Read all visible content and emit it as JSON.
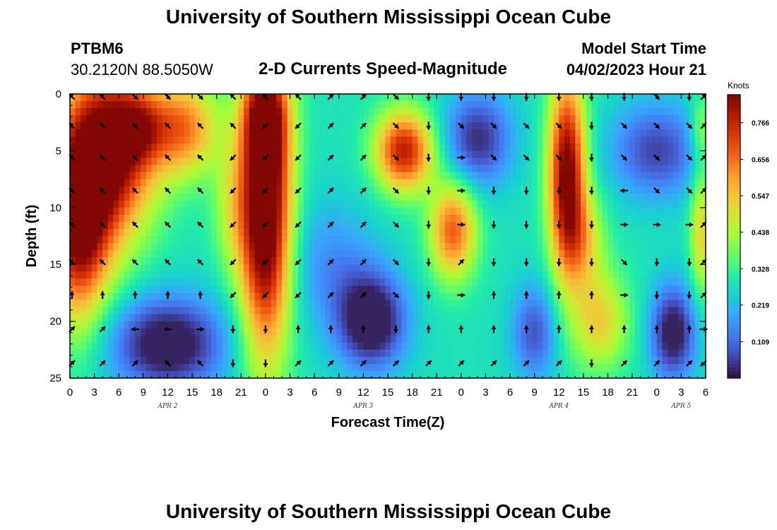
{
  "page": {
    "title": "University of Southern Mississippi Ocean Cube",
    "footer_title": "University of Southern Mississippi Ocean Cube",
    "station": "PTBM6",
    "coordinates": "30.2120N  88.5050W",
    "model_start_label": "Model Start Time",
    "model_start_value": "04/02/2023 Hour 21"
  },
  "chart_data": {
    "type": "heatmap",
    "title": "2-D Currents Speed-Magnitude",
    "xlabel": "Forecast Time(Z)",
    "ylabel": "Depth (ft)",
    "x_ticks": [
      "0",
      "3",
      "6",
      "9",
      "12",
      "15",
      "18",
      "21",
      "0",
      "3",
      "6",
      "9",
      "12",
      "15",
      "18",
      "21",
      "0",
      "3",
      "6",
      "9",
      "12",
      "15",
      "18",
      "21",
      "0",
      "3",
      "6"
    ],
    "x_range_hours": [
      0,
      78
    ],
    "date_labels": [
      {
        "text": "APR 2",
        "hour": 12
      },
      {
        "text": "APR 3",
        "hour": 36
      },
      {
        "text": "APR 4",
        "hour": 60
      },
      {
        "text": "APR 5",
        "hour": 75
      }
    ],
    "y_ticks": [
      "0",
      "5",
      "10",
      "15",
      "20",
      "25"
    ],
    "ylim": [
      0,
      25
    ],
    "y_inverted": true,
    "colorbar": {
      "unit": "Knots",
      "ticks": [
        "0.766",
        "0.656",
        "0.547",
        "0.438",
        "0.328",
        "0.219",
        "0.109"
      ],
      "range": [
        0,
        0.85
      ],
      "colors": [
        "#30123b",
        "#4145ab",
        "#4675ed",
        "#39a2fc",
        "#1bcfd4",
        "#24eca6",
        "#61fc6c",
        "#a4fc3b",
        "#d1e834",
        "#f3c63a",
        "#fe9b2d",
        "#f36315",
        "#d93806",
        "#b11901",
        "#7a0403"
      ]
    },
    "speed_blobs": [
      {
        "t": 5,
        "d": 4,
        "st": 4,
        "sd": 5,
        "a": 0.55
      },
      {
        "t": 1,
        "d": 12,
        "st": 2.5,
        "sd": 6,
        "a": 0.45
      },
      {
        "t": 3,
        "d": 10,
        "st": 4,
        "sd": 5,
        "a": 0.2
      },
      {
        "t": 14,
        "d": 3,
        "st": 3,
        "sd": 3,
        "a": 0.35
      },
      {
        "t": 24,
        "d": 10,
        "st": 2.2,
        "sd": 9,
        "a": 0.7
      },
      {
        "t": 24,
        "d": 2,
        "st": 2,
        "sd": 3,
        "a": 0.3
      },
      {
        "t": 20,
        "d": 10,
        "st": 1.8,
        "sd": 4,
        "a": 0.15
      },
      {
        "t": 41,
        "d": 5,
        "st": 2.5,
        "sd": 2.5,
        "a": 0.5
      },
      {
        "t": 47,
        "d": 12,
        "st": 2,
        "sd": 3,
        "a": 0.4
      },
      {
        "t": 61,
        "d": 7,
        "st": 1.6,
        "sd": 6,
        "a": 0.6
      },
      {
        "t": 63,
        "d": 13,
        "st": 2,
        "sd": 3,
        "a": 0.2
      },
      {
        "t": 65,
        "d": 20,
        "st": 2.5,
        "sd": 3,
        "a": 0.25
      },
      {
        "t": 77.5,
        "d": 12,
        "st": 1,
        "sd": 4,
        "a": 0.25
      },
      {
        "t": 77.5,
        "d": 3,
        "st": 1,
        "sd": 2,
        "a": 0.15
      },
      {
        "t": 8.5,
        "d": 3,
        "st": 2,
        "sd": 2,
        "a": 0.2
      }
    ],
    "speed_dips": [
      {
        "t": 12,
        "d": 22,
        "st": 5,
        "sd": 3,
        "a": 0.32
      },
      {
        "t": 37,
        "d": 20,
        "st": 3,
        "sd": 3,
        "a": 0.33
      },
      {
        "t": 50,
        "d": 4,
        "st": 3,
        "sd": 3,
        "a": 0.25
      },
      {
        "t": 57,
        "d": 21,
        "st": 2,
        "sd": 3,
        "a": 0.2
      },
      {
        "t": 72,
        "d": 5,
        "st": 4,
        "sd": 3,
        "a": 0.22
      },
      {
        "t": 74,
        "d": 21,
        "st": 2,
        "sd": 3,
        "a": 0.3
      },
      {
        "t": 32,
        "d": 15,
        "st": 4,
        "sd": 4,
        "a": 0.12
      }
    ],
    "vector_rows_ft": [
      0,
      2.8,
      5.6,
      8.5,
      11.5,
      14.8,
      17.7,
      20.7,
      23.7
    ],
    "vector_cols_hours": [
      0,
      4,
      8,
      12,
      16,
      20,
      24,
      28,
      32,
      36,
      40,
      44,
      48,
      52,
      56,
      60,
      64,
      68,
      72,
      76,
      78
    ],
    "vector_dirs_deg": [
      [
        315,
        315,
        135,
        135,
        135,
        315,
        315,
        315,
        45,
        45,
        135,
        180,
        180,
        180,
        180,
        180,
        180,
        180,
        135,
        180,
        45
      ],
      [
        315,
        315,
        315,
        315,
        315,
        315,
        225,
        225,
        45,
        45,
        135,
        180,
        135,
        135,
        135,
        135,
        180,
        135,
        135,
        135,
        45
      ],
      [
        315,
        315,
        315,
        315,
        315,
        225,
        225,
        225,
        45,
        45,
        135,
        180,
        90,
        135,
        135,
        135,
        180,
        135,
        135,
        135,
        45
      ],
      [
        315,
        315,
        315,
        315,
        315,
        225,
        225,
        225,
        45,
        45,
        135,
        180,
        90,
        180,
        180,
        180,
        180,
        270,
        135,
        135,
        45
      ],
      [
        315,
        315,
        315,
        315,
        315,
        225,
        225,
        225,
        45,
        45,
        135,
        180,
        90,
        180,
        180,
        180,
        180,
        90,
        90,
        90,
        45
      ],
      [
        315,
        315,
        315,
        315,
        315,
        225,
        225,
        225,
        45,
        45,
        135,
        180,
        45,
        180,
        180,
        180,
        180,
        135,
        180,
        180,
        45
      ],
      [
        0,
        0,
        0,
        0,
        0,
        225,
        225,
        225,
        45,
        45,
        135,
        180,
        90,
        0,
        0,
        0,
        0,
        90,
        180,
        180,
        45
      ],
      [
        45,
        45,
        270,
        270,
        90,
        180,
        180,
        0,
        0,
        0,
        180,
        0,
        0,
        0,
        0,
        0,
        0,
        0,
        0,
        0,
        90
      ],
      [
        45,
        45,
        45,
        315,
        315,
        180,
        180,
        45,
        45,
        45,
        45,
        45,
        45,
        45,
        45,
        45,
        180,
        45,
        45,
        45,
        225
      ]
    ]
  }
}
